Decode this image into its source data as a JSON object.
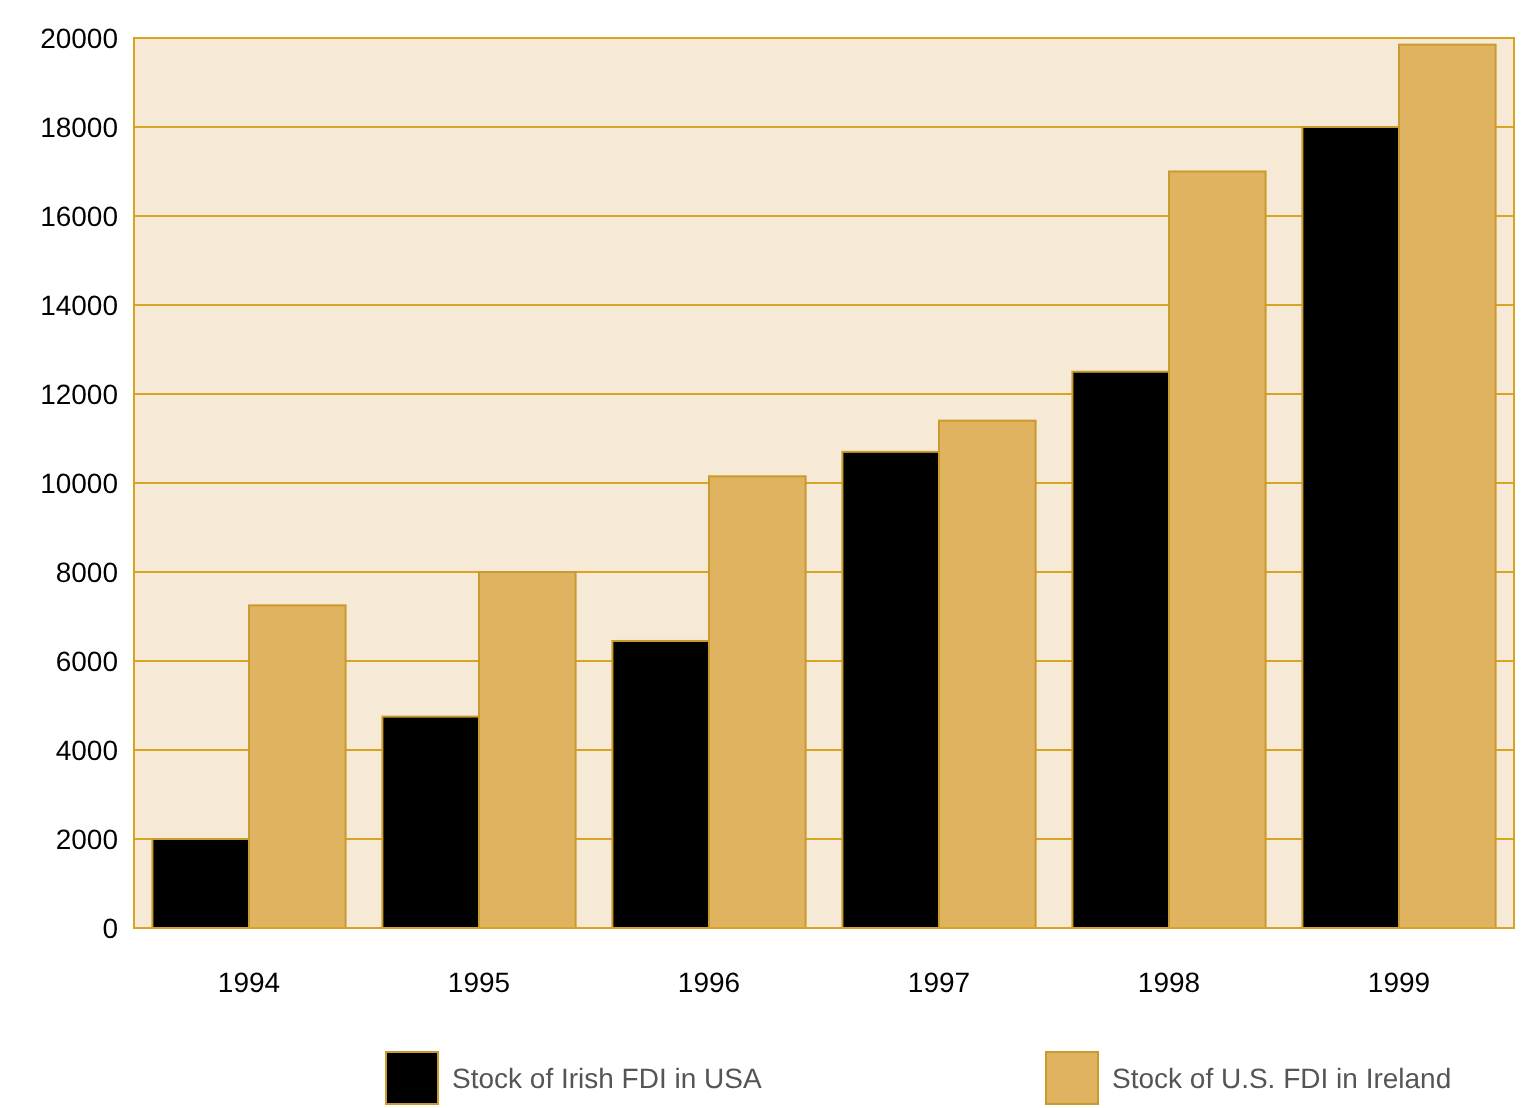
{
  "chart_data": {
    "type": "bar",
    "categories": [
      "1994",
      "1995",
      "1996",
      "1997",
      "1998",
      "1999"
    ],
    "series": [
      {
        "name": "Stock of Irish FDI in USA",
        "color": "#000000",
        "values": [
          2000,
          4750,
          6450,
          10700,
          12500,
          18000
        ]
      },
      {
        "name": "Stock of U.S. FDI in Ireland",
        "color": "#e0b360",
        "values": [
          7250,
          8000,
          10150,
          11400,
          17000,
          19850
        ]
      }
    ],
    "ylim": [
      0,
      20000
    ],
    "yticks": [
      0,
      2000,
      4000,
      6000,
      8000,
      10000,
      12000,
      14000,
      16000,
      18000,
      20000
    ],
    "grid": "y",
    "legend": "bottom"
  }
}
